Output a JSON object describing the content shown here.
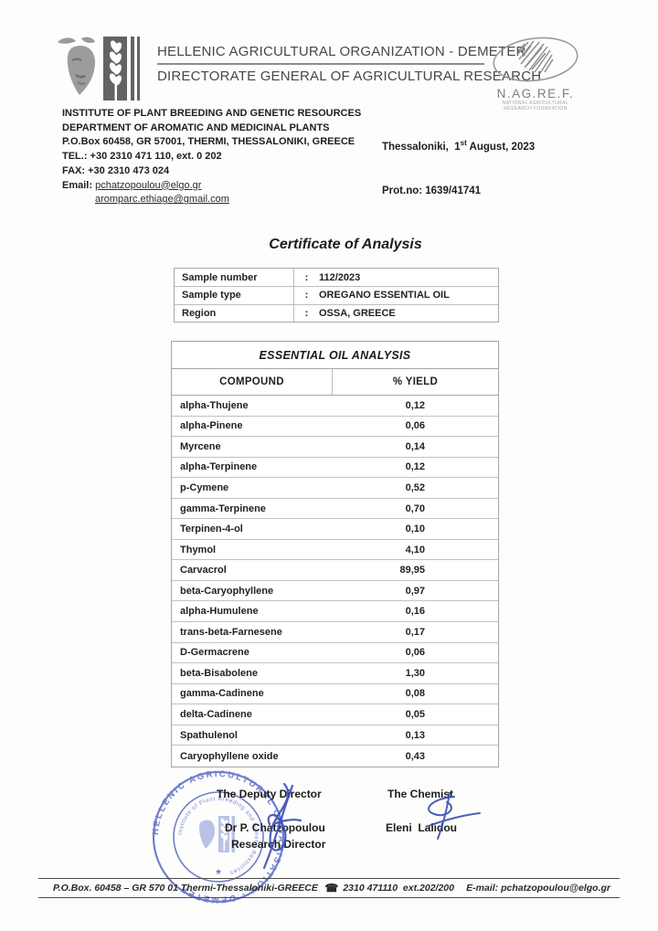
{
  "header": {
    "org_line1": "HELLENIC AGRICULTURAL ORGANIZATION - DEMETER",
    "org_line2": "DIRECTORATE GENERAL OF AGRICULTURAL RESEARCH",
    "nagref_name": "N.AG.RE.F.",
    "nagref_sub1": "NATIONAL  AGRICULTURAL",
    "nagref_sub2": "RESEARCH FOUNDATION"
  },
  "institute": {
    "line1": "INSTITUTE OF PLANT BREEDING AND GENETIC RESOURCES",
    "line2": "DEPARTMENT OF AROMATIC AND MEDICINAL PLANTS",
    "line3": "P.O.Box 60458,  GR 57001, THERMI, THESSALONIKI, GREECE",
    "tel": "TEL.: +30 2310 471 110, ext. 0 202",
    "fax": "FAX: +30 2310 473 024",
    "email_label": "Email: ",
    "email1": "pchatzopoulou@elgo.gr",
    "email2": "aromparc.ethiage@gmail.com"
  },
  "meta": {
    "date_pre": "Thessaloniki,  1",
    "date_sup": "st",
    "date_post": " August, 2023",
    "prot": "Prot.no: 1639/41741"
  },
  "title": "Certificate of Analysis",
  "sample_info": {
    "rows": [
      {
        "label": "Sample number",
        "sep": ":",
        "value": "112/2023"
      },
      {
        "label": "Sample type",
        "sep": ":",
        "value": "OREGANO ESSENTIAL OIL"
      },
      {
        "label": "Region",
        "sep": ":",
        "value": "OSSA, GREECE"
      }
    ]
  },
  "analysis": {
    "title": "ESSENTIAL OIL ANALYSIS",
    "col_compound": "COMPOUND",
    "col_yield": "%  YIELD",
    "rows": [
      {
        "compound": "alpha-Thujene",
        "yield": "0,12"
      },
      {
        "compound": "alpha-Pinene",
        "yield": "0,06"
      },
      {
        "compound": "Myrcene",
        "yield": "0,14"
      },
      {
        "compound": "alpha-Terpinene",
        "yield": "0,12"
      },
      {
        "compound": "p-Cymene",
        "yield": "0,52"
      },
      {
        "compound": "gamma-Terpinene",
        "yield": "0,70"
      },
      {
        "compound": "Terpinen-4-ol",
        "yield": "0,10"
      },
      {
        "compound": "Thymol",
        "yield": "4,10"
      },
      {
        "compound": "Carvacrol",
        "yield": "89,95"
      },
      {
        "compound": "beta-Caryophyllene",
        "yield": "0,97"
      },
      {
        "compound": "alpha-Humulene",
        "yield": "0,16"
      },
      {
        "compound": "trans-beta-Farnesene",
        "yield": "0,17"
      },
      {
        "compound": "D-Germacrene",
        "yield": "0,06"
      },
      {
        "compound": "beta-Bisabolene",
        "yield": "1,30"
      },
      {
        "compound": "gamma-Cadinene",
        "yield": "0,08"
      },
      {
        "compound": "delta-Cadinene",
        "yield": "0,05"
      },
      {
        "compound": "Spathulenol",
        "yield": "0,13"
      },
      {
        "compound": "Caryophyllene oxide",
        "yield": "0,43"
      }
    ]
  },
  "signatures": {
    "left_title": "The Deputy Director",
    "left_name": "Dr P. Chatzopoulou",
    "left_role": "Research Director",
    "right_title": "The Chemist",
    "right_name": "Eleni  Lalidou"
  },
  "stamp": {
    "outer_text": "HELLENIC AGRICULTURAL ORGANISATION - DEMETER",
    "inner_text": "Institute of Plant Breeding and Genetic Resources",
    "star": "★"
  },
  "footer": {
    "address": "P.O.Box. 60458 – GR 570 01 Thermi-Thessaloniki-GREECE",
    "phone_icon": "☎",
    "phone": "2310 471110  ext.202/200",
    "email": "E-mail: pchatzopoulou@elgo.gr"
  },
  "colors": {
    "stamp_blue": "#4f60c0",
    "signature_blue": "#3a4cb5",
    "text": "#222222",
    "table_border": "#b0b0b0",
    "header_gray": "#474747"
  }
}
